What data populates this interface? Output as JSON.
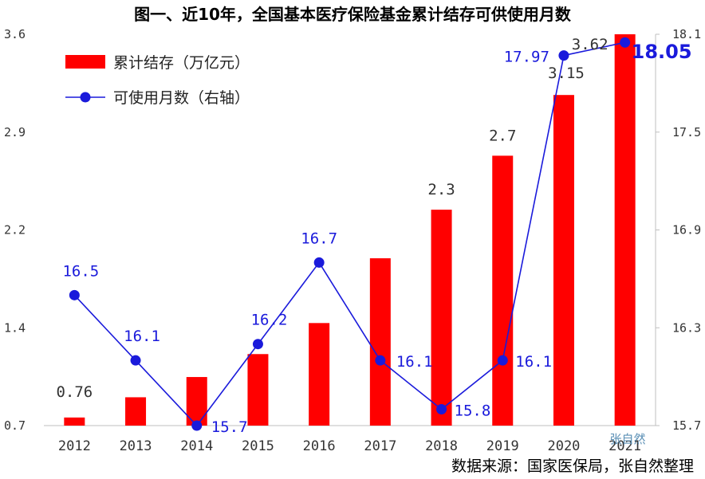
{
  "title": "图一、近10年，全国基本医疗保险基金累计结存可供使用月数",
  "source": "数据来源：国家医保局，张自然整理",
  "watermark": "张自然",
  "chart_data": {
    "type": "bar",
    "categories": [
      "2012",
      "2013",
      "2014",
      "2015",
      "2016",
      "2017",
      "2018",
      "2019",
      "2020",
      "2021"
    ],
    "series": [
      {
        "name": "累计结存（万亿元）",
        "type": "bar",
        "axis": "left",
        "color": "#ff0000",
        "values": [
          0.76,
          0.91,
          1.06,
          1.23,
          1.46,
          1.94,
          2.3,
          2.7,
          3.15,
          3.62
        ],
        "labels": [
          "0.76",
          "",
          "",
          "",
          "",
          "",
          "2.3",
          "2.7",
          "3.15",
          "3.62"
        ]
      },
      {
        "name": "可使用月数（右轴）",
        "type": "line",
        "axis": "right",
        "color": "#1a1adb",
        "values": [
          16.5,
          16.1,
          15.7,
          16.2,
          16.7,
          16.1,
          15.8,
          16.1,
          17.97,
          18.05
        ],
        "labels": [
          "16.5",
          "16.1",
          "15.7",
          "16.2",
          "16.7",
          "16.1",
          "15.8",
          "16.1",
          "17.97",
          "18.05"
        ]
      }
    ],
    "y_left": {
      "ylim": [
        0.7,
        3.6
      ],
      "ticks": [
        "0.7",
        "1.4",
        "2.2",
        "2.9",
        "3.6"
      ]
    },
    "y_right": {
      "ylim": [
        15.7,
        18.1
      ],
      "ticks": [
        "15.7",
        "16.3",
        "16.9",
        "17.5",
        "18.1"
      ]
    },
    "grid": false,
    "legend": "top-left"
  }
}
